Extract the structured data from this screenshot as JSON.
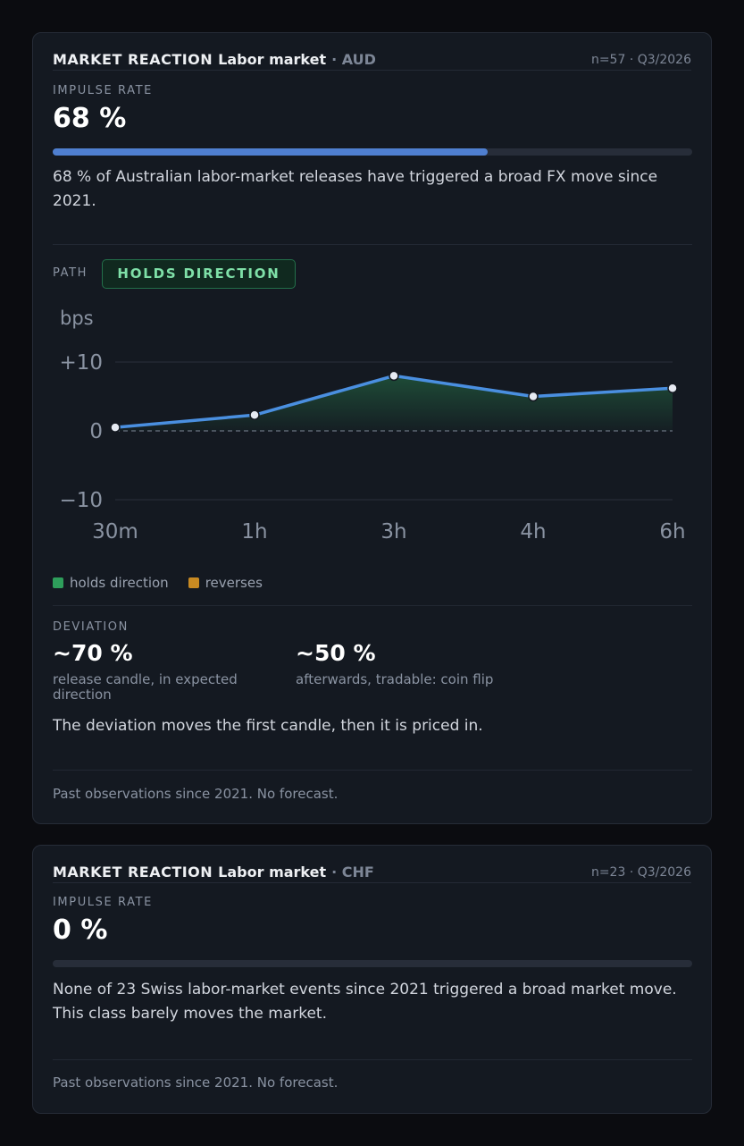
{
  "cards": [
    {
      "kicker": "MARKET REACTION",
      "subject": "Labor market",
      "currency": "· AUD",
      "meta": "n=57 · Q3/2026",
      "impulse_label": "IMPULSE RATE",
      "impulse_value": "68 %",
      "impulse_fraction": 0.68,
      "description": "68 % of Australian labor-market releases have triggered a broad FX move since 2021.",
      "path_label": "PATH",
      "path_badge": "HOLDS DIRECTION",
      "legend": [
        {
          "label": "holds direction",
          "color": "#2e9e5b"
        },
        {
          "label": "reverses",
          "color": "#c88a22"
        }
      ],
      "deviation_label": "DEVIATION",
      "deviation_items": [
        {
          "value": "~70 %",
          "caption": "release candle, in expected direction"
        },
        {
          "value": "~50 %",
          "caption": "afterwards, tradable: coin flip"
        }
      ],
      "deviation_text": "The deviation moves the first candle, then it is priced in.",
      "footer": "Past observations since 2021. No forecast."
    },
    {
      "kicker": "MARKET REACTION",
      "subject": "Labor market",
      "currency": "· CHF",
      "meta": "n=23 · Q3/2026",
      "impulse_label": "IMPULSE RATE",
      "impulse_value": "0 %",
      "impulse_fraction": 0,
      "description": "None of 23 Swiss labor-market events since 2021 triggered a broad market move. This class barely moves the market.",
      "footer": "Past observations since 2021. No forecast."
    }
  ],
  "chart_data": {
    "type": "area",
    "unit_label": "bps",
    "categories": [
      "30m",
      "1h",
      "3h",
      "4h",
      "6h"
    ],
    "series": [
      {
        "values": [
          0.5,
          2.3,
          8.0,
          5.0,
          6.2
        ],
        "color": "#4a8fe0"
      }
    ],
    "ylim": [
      -10,
      10
    ],
    "yticks": [
      {
        "value": 10,
        "label": "+10"
      },
      {
        "value": 0,
        "label": "0"
      },
      {
        "value": -10,
        "label": "−10"
      }
    ],
    "fill_color": "#2e9e5b",
    "zero_line": "dashed",
    "grid": true
  }
}
